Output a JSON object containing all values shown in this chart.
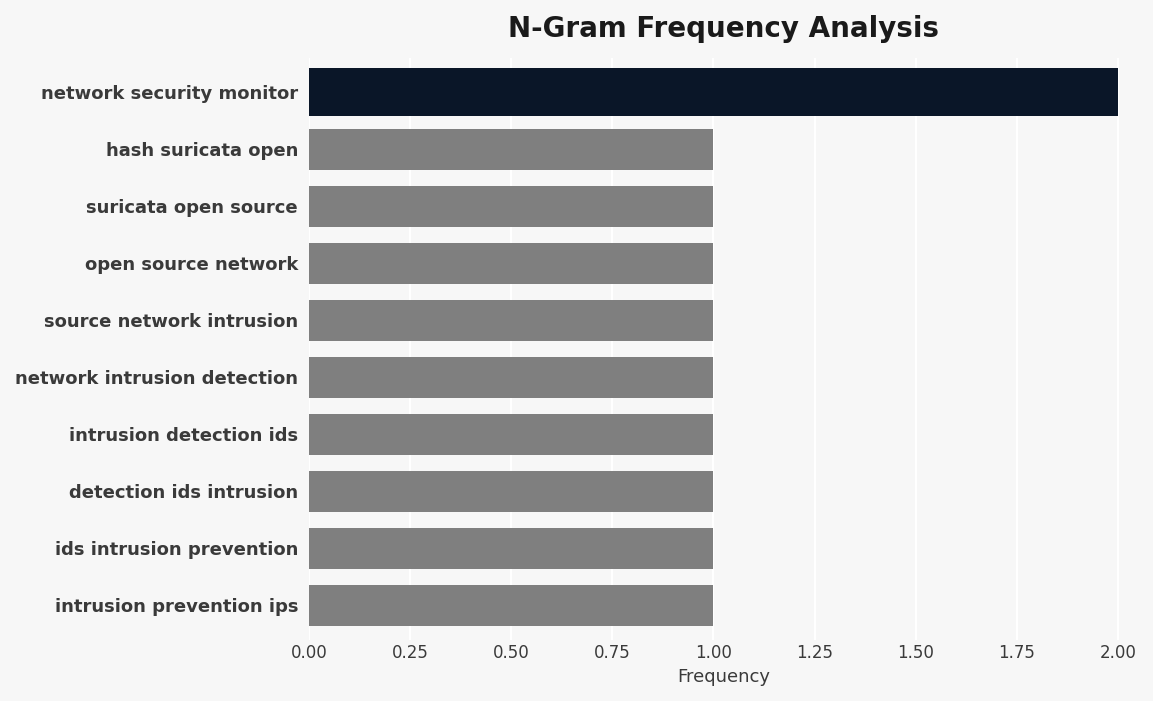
{
  "title": "N-Gram Frequency Analysis",
  "xlabel": "Frequency",
  "categories": [
    "intrusion prevention ips",
    "ids intrusion prevention",
    "detection ids intrusion",
    "intrusion detection ids",
    "network intrusion detection",
    "source network intrusion",
    "open source network",
    "suricata open source",
    "hash suricata open",
    "network security monitor"
  ],
  "values": [
    1,
    1,
    1,
    1,
    1,
    1,
    1,
    1,
    1,
    2
  ],
  "bar_colors": [
    "#7f7f7f",
    "#7f7f7f",
    "#7f7f7f",
    "#7f7f7f",
    "#7f7f7f",
    "#7f7f7f",
    "#7f7f7f",
    "#7f7f7f",
    "#7f7f7f",
    "#0a1628"
  ],
  "bar_heights": [
    0.72,
    0.72,
    0.72,
    0.72,
    0.72,
    0.72,
    0.72,
    0.72,
    0.72,
    0.85
  ],
  "xlim": [
    0,
    2.05
  ],
  "xticks": [
    0.0,
    0.25,
    0.5,
    0.75,
    1.0,
    1.25,
    1.5,
    1.75,
    2.0
  ],
  "xtick_labels": [
    "0.00",
    "0.25",
    "0.50",
    "0.75",
    "1.00",
    "1.25",
    "1.50",
    "1.75",
    "2.00"
  ],
  "background_color": "#f7f7f7",
  "title_fontsize": 20,
  "label_fontsize": 13,
  "tick_fontsize": 12,
  "title_color": "#1a1a1a",
  "label_color": "#3a3a3a",
  "tick_color": "#3a3a3a",
  "grid_color": "#ffffff",
  "xlabel_fontsize": 13
}
